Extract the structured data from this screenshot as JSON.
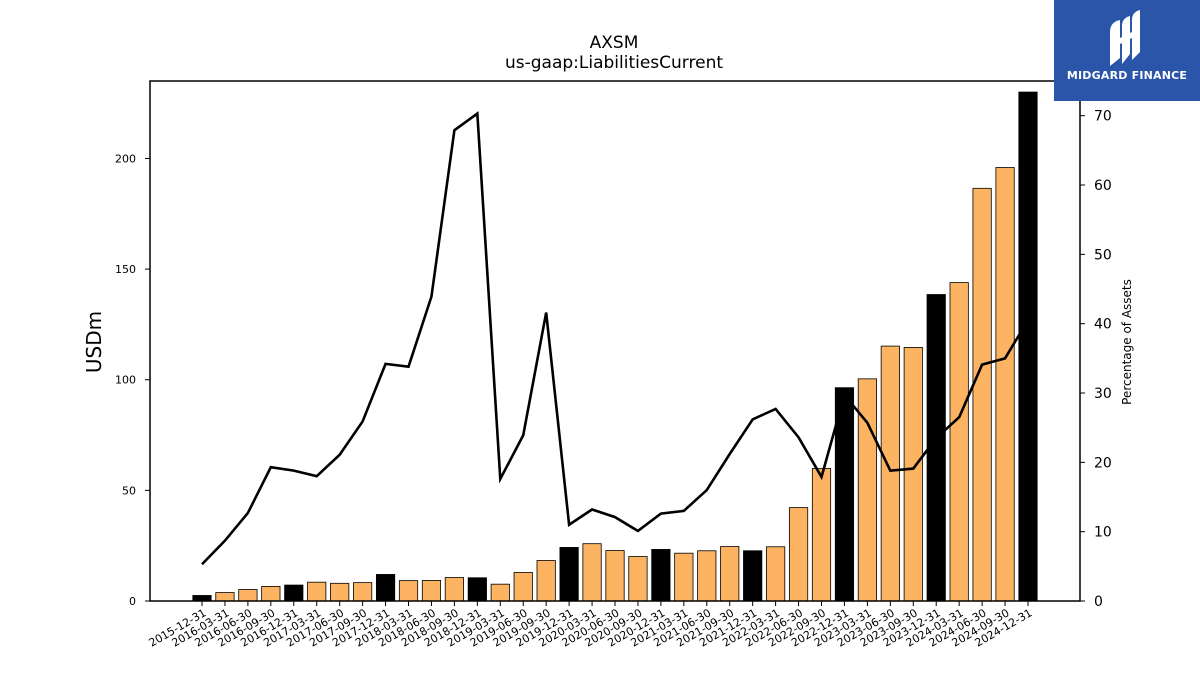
{
  "chart_data": {
    "type": "bar",
    "title": "AXSM",
    "subtitle": "us-gaap:LiabilitiesCurrent",
    "ylabel": "USDm",
    "y2label": "Percentage of Assets",
    "ylim": [
      0,
      235
    ],
    "y2lim": [
      0,
      75
    ],
    "y_ticks": [
      0,
      50,
      100,
      150,
      200
    ],
    "y2_ticks": [
      0,
      10,
      20,
      30,
      40,
      50,
      60,
      70
    ],
    "grid": false,
    "categories": [
      "2015-12-31",
      "2016-03-31",
      "2016-06-30",
      "2016-09-30",
      "2016-12-31",
      "2017-03-31",
      "2017-06-30",
      "2017-09-30",
      "2017-12-31",
      "2018-03-31",
      "2018-06-30",
      "2018-09-30",
      "2018-12-31",
      "2019-03-31",
      "2019-06-30",
      "2019-09-30",
      "2019-12-31",
      "2020-03-31",
      "2020-06-30",
      "2020-09-30",
      "2020-12-31",
      "2021-03-31",
      "2021-06-30",
      "2021-09-30",
      "2021-12-31",
      "2022-03-31",
      "2022-06-30",
      "2022-09-30",
      "2022-12-31",
      "2023-03-31",
      "2023-06-30",
      "2023-09-30",
      "2023-12-31",
      "2024-03-31",
      "2024-06-30",
      "2024-09-30",
      "2024-12-31"
    ],
    "series": [
      {
        "name": "",
        "type": "bar",
        "axis": "left",
        "colors": {
          "annual": "#000000",
          "quarterly": "#fdb462"
        },
        "values": [
          2.5,
          3.8,
          5.2,
          6.6,
          7.2,
          8.5,
          8.0,
          8.3,
          12.0,
          9.2,
          9.3,
          10.6,
          10.5,
          7.6,
          12.9,
          18.3,
          24.2,
          25.9,
          22.8,
          20.1,
          23.3,
          21.6,
          22.7,
          24.6,
          22.7,
          24.5,
          42.2,
          59.9,
          96.4,
          100.4,
          115.2,
          114.6,
          138.5,
          143.9,
          186.5,
          195.9,
          230.0
        ]
      },
      {
        "name": "",
        "type": "line",
        "axis": "right",
        "color": "#000000",
        "values": [
          5.3,
          8.7,
          12.7,
          19.3,
          18.8,
          18.0,
          21.1,
          25.9,
          34.2,
          33.8,
          43.9,
          67.9,
          70.3,
          17.6,
          23.9,
          41.6,
          11.0,
          13.2,
          12.1,
          10.1,
          12.6,
          13.0,
          16.0,
          21.2,
          26.2,
          27.7,
          23.6,
          17.9,
          29.7,
          25.7,
          18.8,
          19.1,
          23.5,
          26.5,
          34.1,
          35.0,
          40.5
        ]
      }
    ],
    "annual_indices": [
      0,
      4,
      8,
      12,
      16,
      20,
      24,
      28,
      32,
      36
    ]
  },
  "logo": {
    "text": "MIDGARD FINANCE",
    "background": "#2a55a8"
  }
}
